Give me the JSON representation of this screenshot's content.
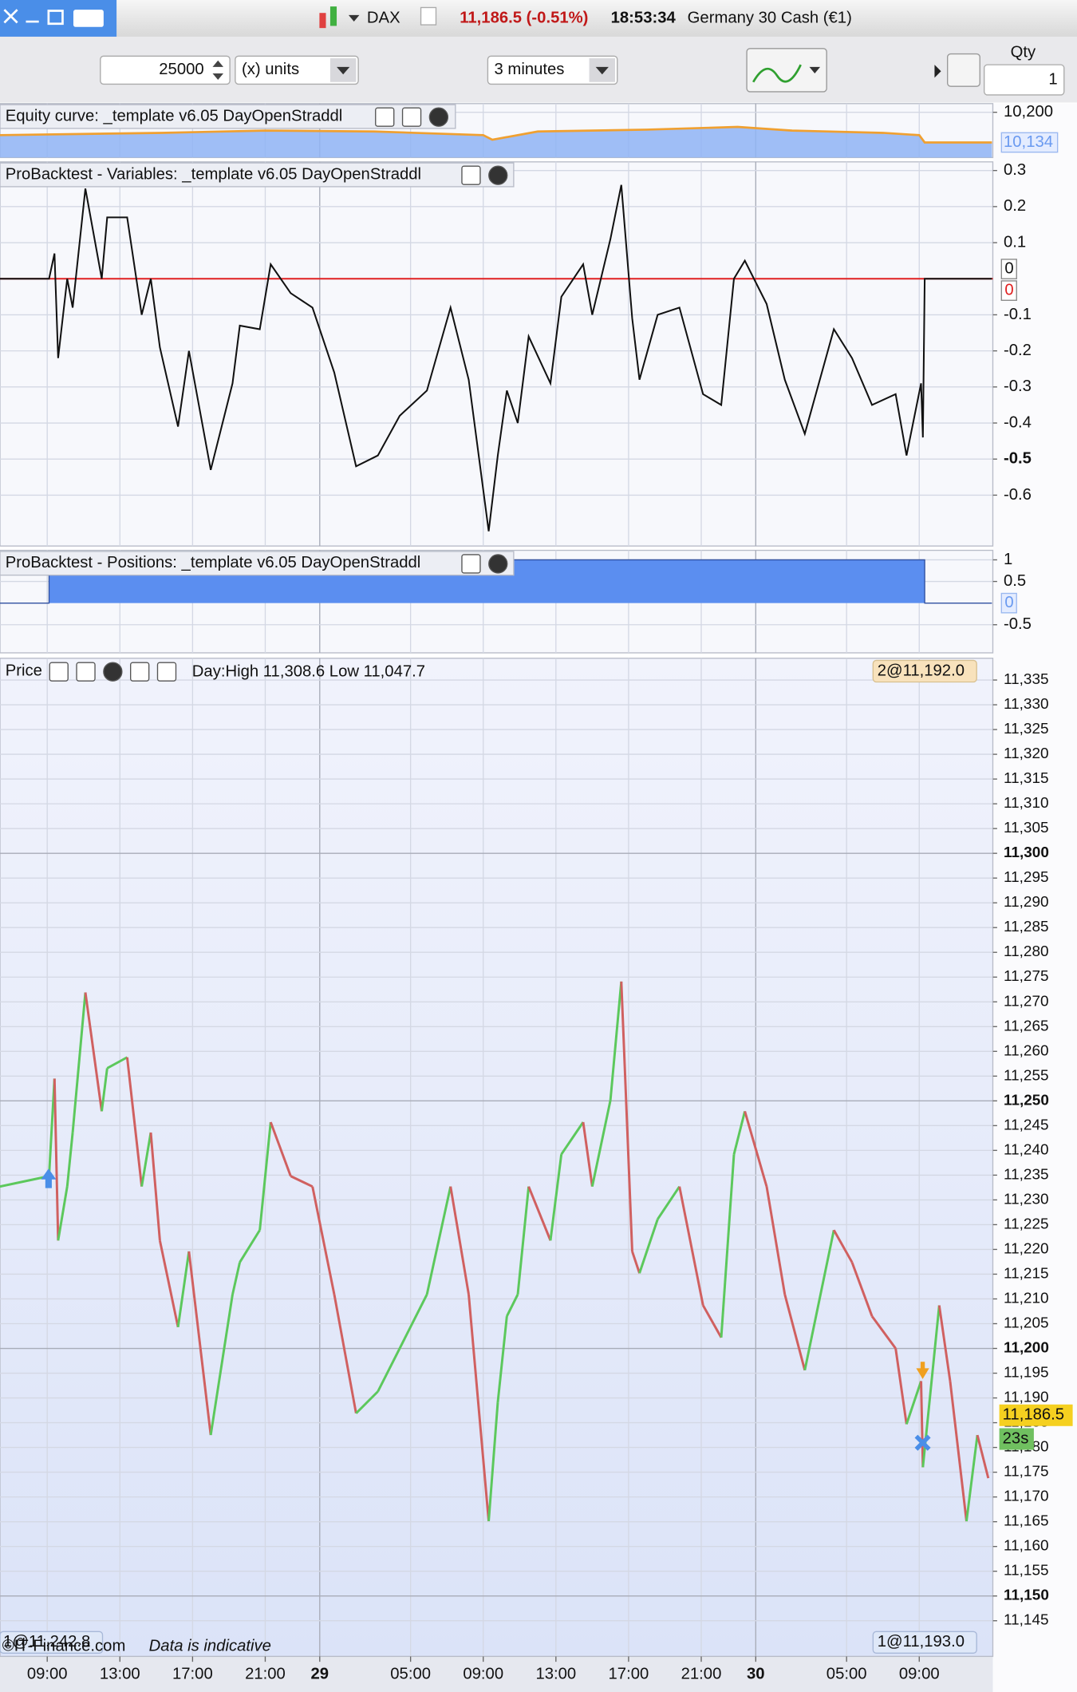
{
  "toolbar": {
    "instrument": "DAX",
    "price": "11,186.5 (-0.51%)",
    "time": "18:53:34",
    "name": "Germany 30 Cash (€1)",
    "quantity": "25000",
    "units": "(x) units",
    "timeframe": "3 minutes",
    "qty_label": "Qty",
    "qty": "1"
  },
  "chart_data": [
    {
      "type": "area",
      "title": "Equity curve: _template v6.05 DayOpenStraddl",
      "x": [
        6.4,
        15.3,
        21,
        27,
        33,
        33.5,
        36,
        42,
        47,
        50,
        55,
        57,
        57.3,
        61
      ],
      "values": [
        10150,
        10155,
        10160,
        10158,
        10150,
        10140,
        10158,
        10162,
        10168,
        10160,
        10155,
        10150,
        10134,
        10134
      ],
      "color": "#f0a030",
      "fill_color": "#8fb4f5",
      "ylim": [
        10101,
        10219
      ],
      "yticks": [
        {
          "value": 10200,
          "label": "10,200"
        }
      ],
      "last_label": {
        "value": 10134,
        "label": "10,134"
      }
    },
    {
      "type": "line",
      "title": "ProBacktest - Variables: _template v6.05 DayOpenStraddl",
      "x": [
        6.4,
        9.1,
        9.4,
        9.6,
        10.1,
        10.4,
        11.1,
        12.0,
        12.3,
        13.4,
        14.2,
        14.7,
        15.2,
        16.2,
        16.8,
        18.0,
        19.2,
        19.6,
        20.7,
        21.3,
        22.4,
        23.6,
        24.8,
        26.0,
        27.2,
        28.4,
        29.9,
        31.2,
        32.2,
        33.3,
        33.8,
        34.3,
        34.9,
        35.5,
        36.7,
        37.3,
        38.5,
        39.0,
        40.0,
        40.6,
        41.2,
        41.6,
        42.6,
        43.8,
        45.1,
        46.1,
        46.8,
        47.4,
        48.6,
        49.6,
        50.7,
        52.3,
        53.3,
        54.4,
        55.7,
        56.3,
        57.1,
        57.2,
        57.3,
        61.0
      ],
      "values": [
        0,
        0,
        0.07,
        -0.22,
        0,
        -0.08,
        0.25,
        0,
        0.17,
        0.17,
        -0.1,
        0,
        -0.19,
        -0.41,
        -0.2,
        -0.53,
        -0.29,
        -0.13,
        -0.14,
        0.04,
        -0.04,
        -0.08,
        -0.26,
        -0.52,
        -0.49,
        -0.38,
        -0.31,
        -0.08,
        -0.28,
        -0.7,
        -0.49,
        -0.31,
        -0.4,
        -0.16,
        -0.29,
        -0.05,
        0.04,
        -0.1,
        0.11,
        0.26,
        -0.11,
        -0.28,
        -0.1,
        -0.08,
        -0.32,
        -0.35,
        0,
        0.05,
        -0.07,
        -0.28,
        -0.43,
        -0.14,
        -0.22,
        -0.35,
        -0.32,
        -0.49,
        -0.29,
        -0.44,
        0,
        0
      ],
      "color": "#111111",
      "hline": 0,
      "hline_color": "#e02020",
      "ylim": [
        -0.741,
        0.324
      ],
      "yticks": [
        0.3,
        0.2,
        0.1,
        -0.1,
        -0.2,
        -0.3,
        -0.4,
        -0.5,
        -0.6
      ]
    },
    {
      "type": "step",
      "title": "ProBacktest - Positions: _template v6.05 DayOpenStraddl",
      "x": [
        6.4,
        9.1,
        9.1,
        57.3,
        57.3,
        61.0
      ],
      "values": [
        0,
        0,
        1,
        1,
        0,
        0
      ],
      "color": "#5b8ef0",
      "ylim": [
        -1.15,
        1.22
      ],
      "yticks": [
        1,
        0.5,
        -0.5
      ]
    },
    {
      "type": "price",
      "title": "Price",
      "annotation": "Day:High 11,308.6 Low 11,047.7",
      "x": [
        6.4,
        9.1,
        9.4,
        9.6,
        10.1,
        10.4,
        11.1,
        12.0,
        12.3,
        13.4,
        14.2,
        14.7,
        15.2,
        16.2,
        16.8,
        18.0,
        19.2,
        19.6,
        20.7,
        21.3,
        22.4,
        23.6,
        24.8,
        26.0,
        27.2,
        28.4,
        29.9,
        31.2,
        32.2,
        33.3,
        33.8,
        34.3,
        34.9,
        35.5,
        36.7,
        37.3,
        38.5,
        39.0,
        40.0,
        40.6,
        41.2,
        41.6,
        42.6,
        43.8,
        45.1,
        46.1,
        46.8,
        47.4,
        48.6,
        49.6,
        50.7,
        52.3,
        53.3,
        54.4,
        55.7,
        56.3,
        57.1,
        57.2,
        58.1,
        58.7,
        59.6,
        60.2,
        60.8
      ],
      "values": [
        11232.7,
        11234.8,
        11254.5,
        11221.8,
        11232.7,
        11243.6,
        11271.9,
        11247.9,
        11256.6,
        11258.8,
        11232.7,
        11243.6,
        11221.8,
        11204.3,
        11219.6,
        11182.5,
        11210.9,
        11217.4,
        11223.9,
        11245.7,
        11234.8,
        11232.7,
        11210.9,
        11186.9,
        11191.3,
        11200.0,
        11210.9,
        11232.7,
        11210.9,
        11165.1,
        11189.1,
        11206.5,
        11210.9,
        11232.7,
        11221.8,
        11239.2,
        11245.7,
        11232.7,
        11250.1,
        11274.1,
        11219.6,
        11215.2,
        11226.1,
        11232.7,
        11208.7,
        11202.2,
        11239.2,
        11247.9,
        11232.7,
        11210.9,
        11195.6,
        11223.9,
        11217.4,
        11206.5,
        11200.0,
        11184.7,
        11193.4,
        11176.0,
        11208.7,
        11193.4,
        11165.1,
        11182.5,
        11173.8
      ],
      "up_color": "#5cc85c",
      "down_color": "#d06060",
      "xlim": [
        6.4,
        61.05
      ],
      "xticks": [
        {
          "value": 9,
          "label": "09:00"
        },
        {
          "value": 13,
          "label": "13:00"
        },
        {
          "value": 17,
          "label": "17:00"
        },
        {
          "value": 21,
          "label": "21:00"
        },
        {
          "value": 24,
          "label": "29"
        },
        {
          "value": 29,
          "label": "05:00"
        },
        {
          "value": 33,
          "label": "09:00"
        },
        {
          "value": 37,
          "label": "13:00"
        },
        {
          "value": 41,
          "label": "17:00"
        },
        {
          "value": 45,
          "label": "21:00"
        },
        {
          "value": 48,
          "label": "30"
        },
        {
          "value": 53,
          "label": "05:00"
        },
        {
          "value": 57,
          "label": "09:00"
        }
      ],
      "ylim": [
        11137.8,
        11339.4
      ],
      "yticks": [
        {
          "value": 11145,
          "label": "11,145"
        },
        {
          "value": 11150,
          "label": "11,150"
        },
        {
          "value": 11155,
          "label": "11,155"
        },
        {
          "value": 11160,
          "label": "11,160"
        },
        {
          "value": 11165,
          "label": "11,165"
        },
        {
          "value": 11170,
          "label": "11,170"
        },
        {
          "value": 11175,
          "label": "11,175"
        },
        {
          "value": 11180,
          "label": "11,180"
        },
        {
          "value": 11185,
          "label": "11,185"
        },
        {
          "value": 11190,
          "label": "11,190"
        },
        {
          "value": 11195,
          "label": "11,195"
        },
        {
          "value": 11200,
          "label": "11,200"
        },
        {
          "value": 11205,
          "label": "11,205"
        },
        {
          "value": 11210,
          "label": "11,210"
        },
        {
          "value": 11215,
          "label": "11,215"
        },
        {
          "value": 11220,
          "label": "11,220"
        },
        {
          "value": 11225,
          "label": "11,225"
        },
        {
          "value": 11230,
          "label": "11,230"
        },
        {
          "value": 11235,
          "label": "11,235"
        },
        {
          "value": 11240,
          "label": "11,240"
        },
        {
          "value": 11245,
          "label": "11,245"
        },
        {
          "value": 11250,
          "label": "11,250"
        },
        {
          "value": 11255,
          "label": "11,255"
        },
        {
          "value": 11260,
          "label": "11,260"
        },
        {
          "value": 11265,
          "label": "11,265"
        },
        {
          "value": 11270,
          "label": "11,270"
        },
        {
          "value": 11275,
          "label": "11,275"
        },
        {
          "value": 11280,
          "label": "11,280"
        },
        {
          "value": 11285,
          "label": "11,285"
        },
        {
          "value": 11290,
          "label": "11,290"
        },
        {
          "value": 11295,
          "label": "11,295"
        },
        {
          "value": 11300,
          "label": "11,300"
        },
        {
          "value": 11305,
          "label": "11,305"
        },
        {
          "value": 11310,
          "label": "11,310"
        },
        {
          "value": 11315,
          "label": "11,315"
        },
        {
          "value": 11320,
          "label": "11,320"
        },
        {
          "value": 11325,
          "label": "11,325"
        },
        {
          "value": 11330,
          "label": "11,330"
        },
        {
          "value": 11335,
          "label": "11,335"
        }
      ],
      "last_label": {
        "value": 11186.5,
        "label": "11,186.5"
      },
      "timer": "23s",
      "orders": [
        "2@11,192.0",
        "1@11,193.0",
        "1@11,242.8"
      ],
      "source": "©IT-Finance.com",
      "disclaimer": "Data is indicative"
    }
  ]
}
